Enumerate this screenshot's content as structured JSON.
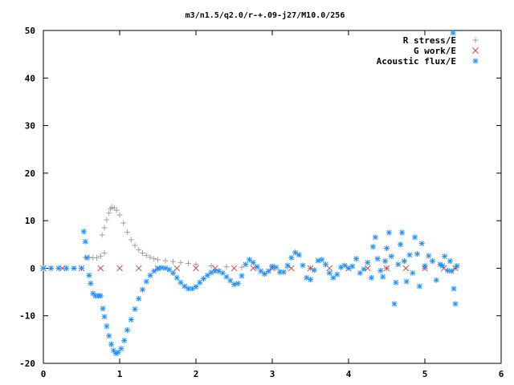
{
  "chart_data": {
    "type": "scatter",
    "title": "m3/n1.5/q2.0/r-+.09-j27/M10.0/256",
    "xlabel": "",
    "ylabel": "",
    "xlim": [
      0,
      6
    ],
    "ylim": [
      -20,
      50
    ],
    "xticks": [
      "0",
      "1",
      "2",
      "3",
      "4",
      "5",
      "6"
    ],
    "yticks": [
      "-20",
      "-10",
      "0",
      "10",
      "20",
      "30",
      "40",
      "50"
    ],
    "grid": false,
    "legend_position": "top-right",
    "series": [
      {
        "name": "R stress/E",
        "marker": "plus",
        "color": "#a0a0a0",
        "points": [
          [
            0.55,
            2.3
          ],
          [
            0.6,
            2.3
          ],
          [
            0.65,
            2.2
          ],
          [
            0.7,
            2.2
          ],
          [
            0.75,
            2.5
          ],
          [
            0.8,
            3.2
          ],
          [
            0.77,
            7.0
          ],
          [
            0.8,
            8.5
          ],
          [
            0.83,
            10.2
          ],
          [
            0.86,
            11.6
          ],
          [
            0.88,
            12.5
          ],
          [
            0.9,
            12.8
          ],
          [
            0.93,
            12.7
          ],
          [
            0.96,
            12.2
          ],
          [
            1.0,
            11.2
          ],
          [
            1.05,
            9.5
          ],
          [
            1.1,
            7.6
          ],
          [
            1.15,
            6.0
          ],
          [
            1.2,
            4.8
          ],
          [
            1.25,
            3.9
          ],
          [
            1.3,
            3.2
          ],
          [
            1.35,
            2.7
          ],
          [
            1.4,
            2.3
          ],
          [
            1.45,
            2.0
          ],
          [
            1.5,
            1.8
          ],
          [
            1.6,
            1.6
          ],
          [
            1.7,
            1.4
          ],
          [
            1.8,
            1.2
          ],
          [
            1.9,
            1.0
          ],
          [
            2.0,
            0.8
          ],
          [
            2.2,
            0.5
          ],
          [
            2.4,
            0.3
          ],
          [
            2.6,
            0.2
          ],
          [
            2.8,
            0.1
          ],
          [
            3.0,
            0.1
          ],
          [
            3.2,
            0.1
          ],
          [
            3.5,
            0.0
          ],
          [
            4.0,
            0.0
          ],
          [
            4.5,
            0.0
          ],
          [
            5.0,
            0.0
          ],
          [
            5.4,
            0.0
          ]
        ]
      },
      {
        "name": "G work/E",
        "marker": "cross",
        "color": "#d04040",
        "points": [
          [
            0.0,
            0.0
          ],
          [
            0.25,
            0.0
          ],
          [
            0.5,
            0.0
          ],
          [
            0.75,
            0.0
          ],
          [
            1.0,
            0.0
          ],
          [
            1.25,
            0.0
          ],
          [
            1.5,
            0.0
          ],
          [
            1.75,
            0.0
          ],
          [
            2.0,
            0.0
          ],
          [
            2.25,
            0.0
          ],
          [
            2.5,
            0.0
          ],
          [
            2.75,
            0.0
          ],
          [
            3.0,
            0.0
          ],
          [
            3.25,
            0.0
          ],
          [
            3.5,
            0.0
          ],
          [
            3.75,
            0.0
          ],
          [
            4.0,
            0.0
          ],
          [
            4.25,
            0.0
          ],
          [
            4.5,
            0.0
          ],
          [
            4.75,
            0.0
          ],
          [
            5.0,
            0.0
          ],
          [
            5.25,
            0.0
          ],
          [
            5.4,
            0.0
          ]
        ]
      },
      {
        "name": "Acoustic flux/E",
        "marker": "star",
        "color": "#1e90ff",
        "points": [
          [
            0.0,
            0.0
          ],
          [
            0.1,
            0.0
          ],
          [
            0.2,
            0.0
          ],
          [
            0.3,
            0.0
          ],
          [
            0.4,
            0.0
          ],
          [
            0.5,
            0.0
          ],
          [
            0.53,
            7.7
          ],
          [
            0.55,
            5.6
          ],
          [
            0.57,
            2.2
          ],
          [
            0.6,
            -1.5
          ],
          [
            0.62,
            -3.2
          ],
          [
            0.65,
            -5.3
          ],
          [
            0.68,
            -5.8
          ],
          [
            0.72,
            -5.8
          ],
          [
            0.75,
            -5.8
          ],
          [
            0.78,
            -8.5
          ],
          [
            0.8,
            -10.2
          ],
          [
            0.83,
            -12.2
          ],
          [
            0.86,
            -14.2
          ],
          [
            0.89,
            -16.0
          ],
          [
            0.92,
            -17.3
          ],
          [
            0.95,
            -17.9
          ],
          [
            0.98,
            -17.7
          ],
          [
            1.02,
            -16.9
          ],
          [
            1.06,
            -15.2
          ],
          [
            1.1,
            -13.0
          ],
          [
            1.15,
            -10.8
          ],
          [
            1.2,
            -8.6
          ],
          [
            1.25,
            -6.4
          ],
          [
            1.3,
            -4.5
          ],
          [
            1.35,
            -2.8
          ],
          [
            1.4,
            -1.5
          ],
          [
            1.45,
            -0.6
          ],
          [
            1.5,
            -0.1
          ],
          [
            1.55,
            0.1
          ],
          [
            1.6,
            0.0
          ],
          [
            1.65,
            -0.3
          ],
          [
            1.7,
            -1.0
          ],
          [
            1.75,
            -2.0
          ],
          [
            1.8,
            -3.0
          ],
          [
            1.85,
            -3.8
          ],
          [
            1.9,
            -4.3
          ],
          [
            1.95,
            -4.3
          ],
          [
            2.0,
            -3.9
          ],
          [
            2.05,
            -3.0
          ],
          [
            2.1,
            -2.2
          ],
          [
            2.15,
            -1.5
          ],
          [
            2.2,
            -0.9
          ],
          [
            2.25,
            -0.6
          ],
          [
            2.3,
            -0.6
          ],
          [
            2.35,
            -1.0
          ],
          [
            2.4,
            -1.8
          ],
          [
            2.45,
            -2.6
          ],
          [
            2.5,
            -3.4
          ],
          [
            2.55,
            -3.2
          ],
          [
            2.6,
            -1.6
          ],
          [
            2.65,
            0.8
          ],
          [
            2.7,
            1.8
          ],
          [
            2.75,
            1.2
          ],
          [
            2.8,
            0.3
          ],
          [
            2.85,
            -0.6
          ],
          [
            2.9,
            -1.2
          ],
          [
            2.95,
            -0.6
          ],
          [
            3.0,
            0.4
          ],
          [
            3.05,
            0.2
          ],
          [
            3.1,
            -0.8
          ],
          [
            3.15,
            -0.8
          ],
          [
            3.2,
            0.6
          ],
          [
            3.25,
            2.2
          ],
          [
            3.3,
            3.3
          ],
          [
            3.35,
            2.8
          ],
          [
            3.4,
            0.6
          ],
          [
            3.45,
            -2.0
          ],
          [
            3.5,
            -2.4
          ],
          [
            3.55,
            -0.4
          ],
          [
            3.6,
            1.6
          ],
          [
            3.65,
            1.8
          ],
          [
            3.7,
            0.8
          ],
          [
            3.75,
            -1.0
          ],
          [
            3.8,
            -2.0
          ],
          [
            3.85,
            -1.3
          ],
          [
            3.9,
            0.2
          ],
          [
            3.95,
            0.6
          ],
          [
            4.0,
            0.0
          ],
          [
            4.05,
            0.4
          ],
          [
            4.1,
            2.0
          ],
          [
            4.15,
            -1.0
          ],
          [
            4.2,
            -0.2
          ],
          [
            4.25,
            1.2
          ],
          [
            4.3,
            -2.0
          ],
          [
            4.32,
            4.5
          ],
          [
            4.35,
            6.5
          ],
          [
            4.38,
            2.0
          ],
          [
            4.42,
            -0.5
          ],
          [
            4.45,
            -1.8
          ],
          [
            4.48,
            1.5
          ],
          [
            4.5,
            4.2
          ],
          [
            4.53,
            7.5
          ],
          [
            4.56,
            2.5
          ],
          [
            4.6,
            -7.5
          ],
          [
            4.62,
            -3.0
          ],
          [
            4.65,
            0.8
          ],
          [
            4.68,
            5.0
          ],
          [
            4.7,
            7.5
          ],
          [
            4.73,
            1.5
          ],
          [
            4.76,
            -2.8
          ],
          [
            4.8,
            2.8
          ],
          [
            4.84,
            -1.0
          ],
          [
            4.87,
            6.5
          ],
          [
            4.9,
            3.0
          ],
          [
            4.93,
            -3.8
          ],
          [
            4.96,
            5.2
          ],
          [
            5.0,
            0.5
          ],
          [
            5.05,
            2.6
          ],
          [
            5.1,
            1.5
          ],
          [
            5.15,
            -2.5
          ],
          [
            5.2,
            0.8
          ],
          [
            5.23,
            0.5
          ],
          [
            5.26,
            2.5
          ],
          [
            5.3,
            -0.5
          ],
          [
            5.33,
            1.5
          ],
          [
            5.35,
            -0.6
          ],
          [
            5.38,
            -4.3
          ],
          [
            5.4,
            -7.5
          ],
          [
            5.42,
            0.5
          ],
          [
            5.37,
            49.5
          ]
        ]
      }
    ]
  }
}
